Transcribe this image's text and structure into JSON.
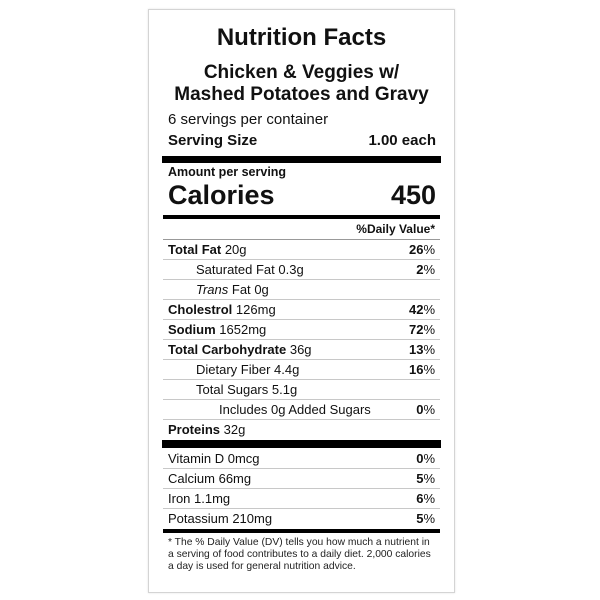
{
  "title": "Nutrition Facts",
  "product": {
    "line1": "Chicken & Veggies w/",
    "line2": "Mashed Potatoes and Gravy"
  },
  "servings_per_container": "6 servings per container",
  "serving_size": {
    "label": "Serving Size",
    "value": "1.00 each"
  },
  "amount_per_serving": "Amount per serving",
  "calories": {
    "label": "Calories",
    "value": "450"
  },
  "daily_value_header": "%Daily Value*",
  "nutrients": [
    {
      "name": "Total Fat",
      "amount": "20g",
      "dv": "26",
      "bold": true,
      "indent": 0
    },
    {
      "name": "Saturated Fat",
      "amount": "0.3g",
      "dv": "2",
      "bold": false,
      "indent": 1
    },
    {
      "name_italic": "Trans",
      "name": "Fat",
      "amount": "0g",
      "dv": "",
      "bold": false,
      "indent": 1
    },
    {
      "name": "Cholestrol",
      "amount": "126mg",
      "dv": "42",
      "bold": true,
      "indent": 0
    },
    {
      "name": "Sodium",
      "amount": "1652mg",
      "dv": "72",
      "bold": true,
      "indent": 0
    },
    {
      "name": "Total Carbohydrate",
      "amount": "36g",
      "dv": "13",
      "bold": true,
      "indent": 0
    },
    {
      "name": "Dietary Fiber",
      "amount": "4.4g",
      "dv": "16",
      "bold": false,
      "indent": 1
    },
    {
      "name": "Total Sugars",
      "amount": "5.1g",
      "dv": "",
      "bold": false,
      "indent": 1
    },
    {
      "name": "Includes 0g Added Sugars",
      "amount": "",
      "dv": "0",
      "bold": false,
      "indent": 2
    },
    {
      "name": "Proteins",
      "amount": "32g",
      "dv": "",
      "bold": true,
      "indent": 0
    }
  ],
  "vitamins": [
    {
      "name": "Vitamin D",
      "amount": "0mcg",
      "dv": "0"
    },
    {
      "name": "Calcium",
      "amount": "66mg",
      "dv": "5"
    },
    {
      "name": "Iron",
      "amount": "1.1mg",
      "dv": "6"
    },
    {
      "name": "Potassium",
      "amount": "210mg",
      "dv": "5"
    }
  ],
  "percent_sign": "%",
  "footnote": "* The % Daily Value (DV) tells you how much a nutrient in a serving of food contributes to a daily diet. 2,000 calories a day is used for general nutrition advice."
}
